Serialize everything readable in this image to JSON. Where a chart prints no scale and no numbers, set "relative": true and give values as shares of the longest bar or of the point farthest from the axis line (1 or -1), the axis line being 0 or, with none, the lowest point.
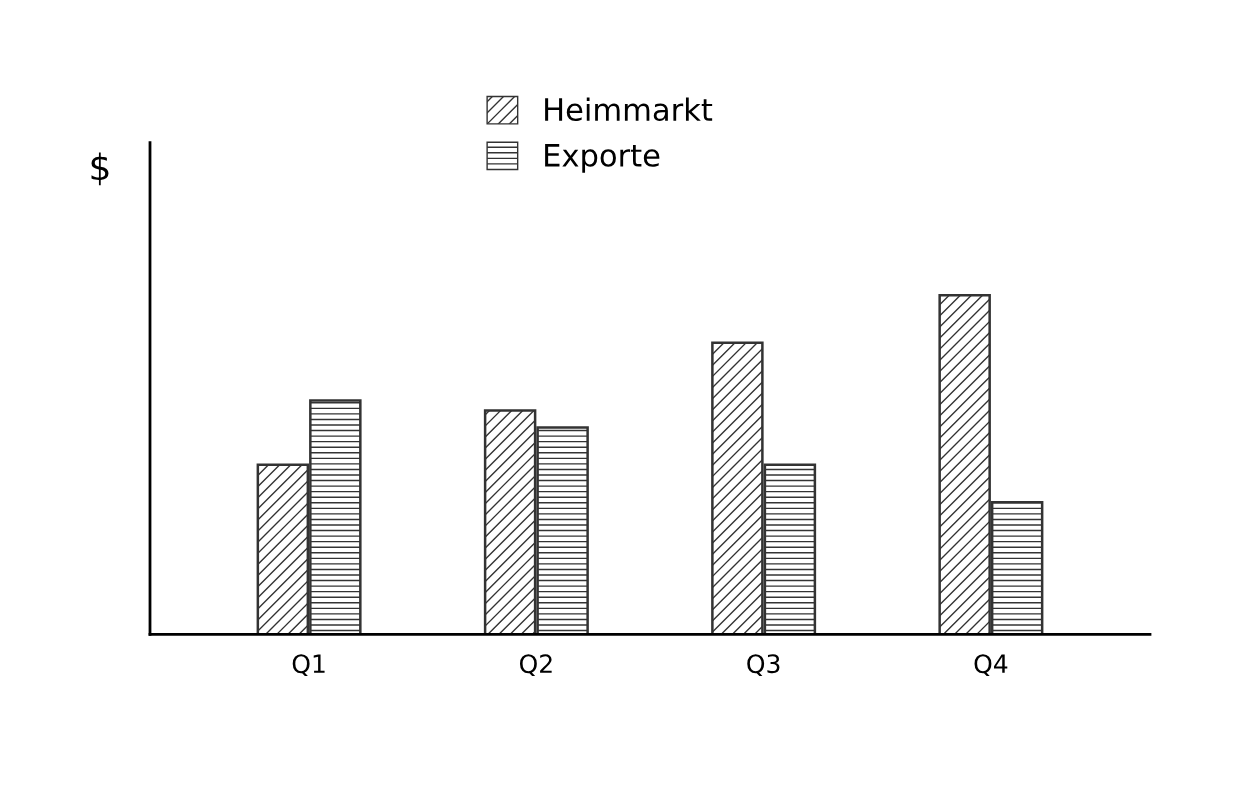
{
  "chart_data": {
    "type": "bar",
    "relative": true,
    "ylabel": "$",
    "categories": [
      "Q1",
      "Q2",
      "Q3",
      "Q4"
    ],
    "series": [
      {
        "name": "Heimmarkt",
        "color": "#333333",
        "values": [
          0.5,
          0.66,
          0.86,
          1.0
        ]
      },
      {
        "name": "Exporte",
        "color": "#333333",
        "values": [
          0.69,
          0.61,
          0.5,
          0.39
        ]
      }
    ],
    "legend": "top",
    "grid": false
  }
}
